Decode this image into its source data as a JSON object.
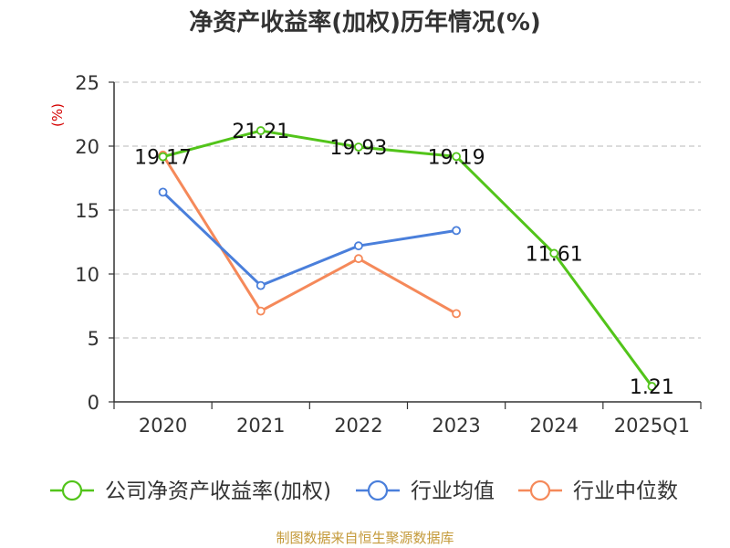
{
  "chart_data": {
    "type": "line",
    "title": "净资产收益率(加权)历年情况(%)",
    "ylabel": "(%)",
    "xlabel": "",
    "categories": [
      "2020",
      "2021",
      "2022",
      "2023",
      "2024",
      "2025Q1"
    ],
    "ylim": [
      0,
      25
    ],
    "yticks": [
      0,
      5,
      10,
      15,
      20,
      25
    ],
    "grid": true,
    "legend_position": "bottom",
    "series": [
      {
        "name": "公司净资产收益率(加权)",
        "color": "#52c41a",
        "values": [
          19.17,
          21.21,
          19.93,
          19.19,
          11.61,
          1.21
        ],
        "labels": [
          "19.17",
          "21.21",
          "19.93",
          "19.19",
          "11.61",
          "1.21"
        ]
      },
      {
        "name": "行业均值",
        "color": "#4a7fdb",
        "values": [
          16.4,
          9.1,
          12.2,
          13.4,
          null,
          null
        ]
      },
      {
        "name": "行业中位数",
        "color": "#f5895a",
        "values": [
          19.3,
          7.1,
          11.2,
          6.9,
          null,
          null
        ]
      }
    ]
  },
  "source": "制图数据来自恒生聚源数据库"
}
